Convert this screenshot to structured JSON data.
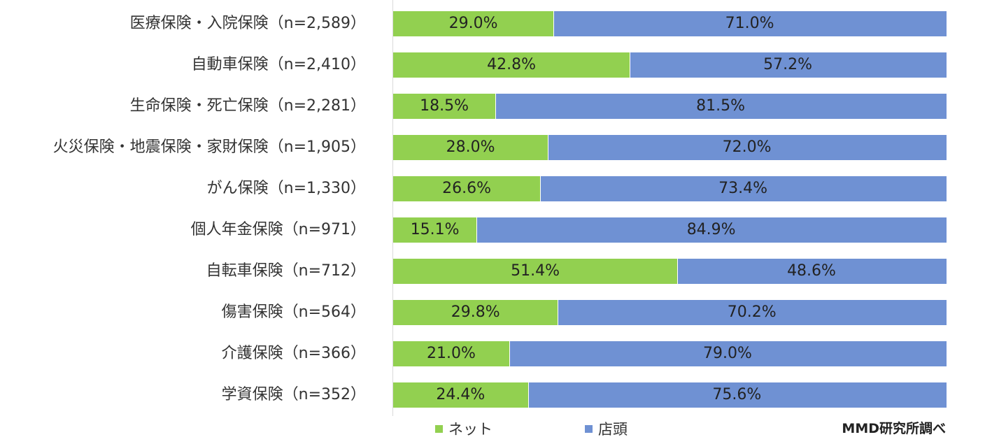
{
  "chart_data": {
    "type": "bar",
    "orientation": "horizontal",
    "stacked": "100%",
    "categories": [
      "医療保険・入院保険（n=2,589）",
      "自動車保険（n=2,410）",
      "生命保険・死亡保険（n=2,281）",
      "火災保険・地震保険・家財保険（n=1,905）",
      "がん保険（n=1,330）",
      "個人年金保険（n=971）",
      "自転車保険（n=712）",
      "傷害保険（n=564）",
      "介護保険（n=366）",
      "学資保険（n=352）"
    ],
    "series": [
      {
        "name": "ネット",
        "color": "#92d050",
        "values": [
          29.0,
          42.8,
          18.5,
          28.0,
          26.6,
          15.1,
          51.4,
          29.8,
          21.0,
          24.4
        ],
        "labels": [
          "29.0%",
          "42.8%",
          "18.5%",
          "28.0%",
          "26.6%",
          "15.1%",
          "51.4%",
          "29.8%",
          "21.0%",
          "24.4%"
        ]
      },
      {
        "name": "店頭",
        "color": "#6f91d3",
        "values": [
          71.0,
          57.2,
          81.5,
          72.0,
          73.4,
          84.9,
          48.6,
          70.2,
          79.0,
          75.6
        ],
        "labels": [
          "71.0%",
          "57.2%",
          "81.5%",
          "72.0%",
          "73.4%",
          "84.9%",
          "48.6%",
          "70.2%",
          "79.0%",
          "75.6%"
        ]
      }
    ],
    "xlim": [
      0,
      100
    ],
    "grid": false,
    "legend_position": "bottom",
    "title": "",
    "xlabel": "",
    "ylabel": ""
  },
  "source_note": "MMD研究所調べ"
}
